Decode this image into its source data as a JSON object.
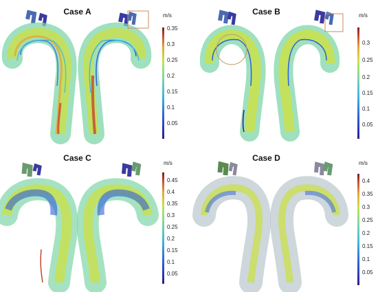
{
  "panels": [
    {
      "title": "Case A",
      "unit": "m/s",
      "ticks": [
        "0.35",
        "0.3",
        "0.25",
        "0.2",
        "0.15",
        "0.1",
        "0.05"
      ],
      "scale_max": 0.35
    },
    {
      "title": "Case B",
      "unit": "m/s",
      "ticks": [
        "0.3",
        "0.25",
        "0.2",
        "0.15",
        "0.1",
        "0.05"
      ],
      "scale_max": 0.33
    },
    {
      "title": "Case C",
      "unit": "m/s",
      "ticks": [
        "0.45",
        "0.4",
        "0.35",
        "0.3",
        "0.25",
        "0.2",
        "0.15",
        "0.1",
        "0.05"
      ],
      "scale_max": 0.48
    },
    {
      "title": "Case D",
      "unit": "m/s",
      "ticks": [
        "0.4",
        "0.35",
        "0.3",
        "0.25",
        "0.2",
        "0.15",
        "0.1",
        "0.05"
      ],
      "scale_max": 0.43
    }
  ],
  "colorscale": [
    "#2b1a8f",
    "#2f5fd6",
    "#3fb6e0",
    "#7fd6a8",
    "#c9e04a",
    "#e6a63a",
    "#c5452e",
    "#7a1d1d"
  ]
}
